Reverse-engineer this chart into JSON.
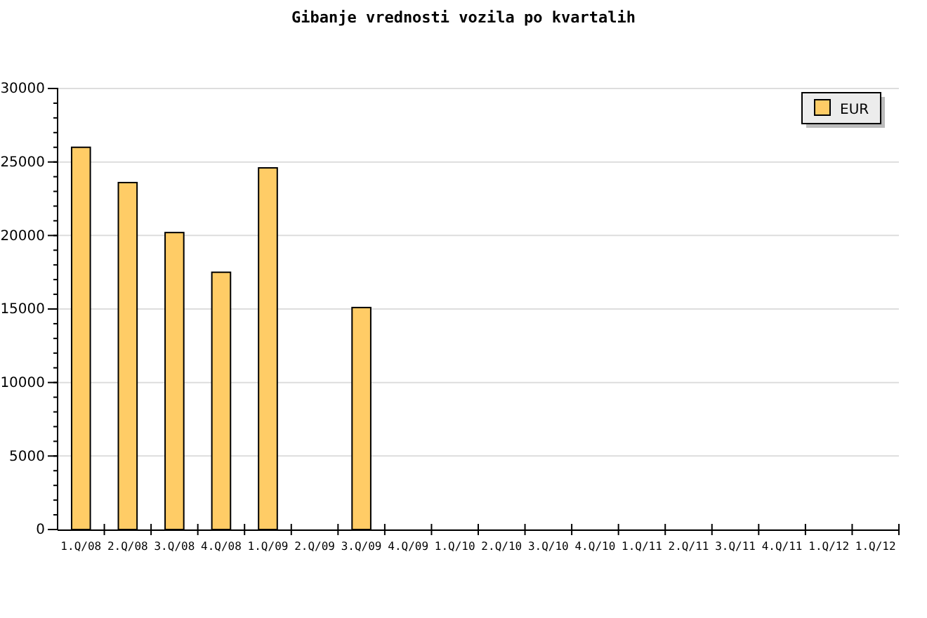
{
  "chart_data": {
    "type": "bar",
    "title": "Gibanje vrednosti vozila po kvartalih",
    "categories": [
      "1.Q/08",
      "2.Q/08",
      "3.Q/08",
      "4.Q/08",
      "1.Q/09",
      "2.Q/09",
      "3.Q/09",
      "4.Q/09",
      "1.Q/10",
      "2.Q/10",
      "3.Q/10",
      "4.Q/10",
      "1.Q/11",
      "2.Q/11",
      "3.Q/11",
      "4.Q/11",
      "1.Q/12",
      "1.Q/12"
    ],
    "series": [
      {
        "name": "EUR",
        "color": "#ffcc66",
        "values": [
          26000,
          23600,
          20200,
          17500,
          24600,
          null,
          15100,
          null,
          null,
          null,
          null,
          null,
          null,
          null,
          null,
          null,
          null,
          null
        ]
      }
    ],
    "ylim": [
      0,
      30000
    ],
    "yticks": [
      0,
      5000,
      10000,
      15000,
      20000,
      25000,
      30000
    ],
    "grid": "y",
    "legend": "top right"
  }
}
